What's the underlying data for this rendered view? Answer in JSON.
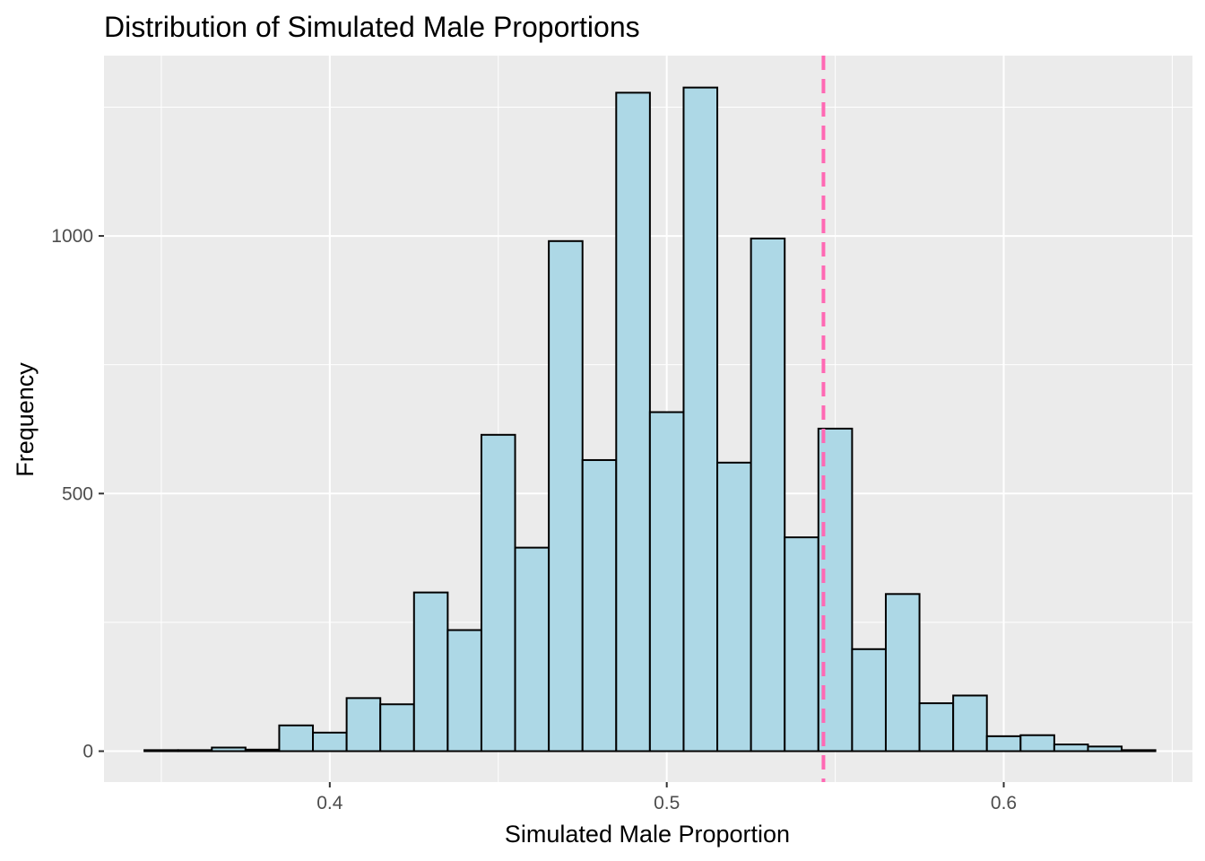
{
  "chart_data": {
    "type": "bar",
    "subtype": "histogram",
    "title": "Distribution of Simulated Male Proportions",
    "xlabel": "Simulated Male Proportion",
    "ylabel": "Frequency",
    "xlim": [
      0.333,
      0.656
    ],
    "ylim": [
      -60,
      1350
    ],
    "x_ticks": [
      0.4,
      0.5,
      0.6
    ],
    "x_tick_labels": [
      "0.4",
      "0.5",
      "0.6"
    ],
    "y_ticks": [
      0,
      500,
      1000
    ],
    "y_tick_labels": [
      "0",
      "500",
      "1000"
    ],
    "bin_width": 0.01,
    "bins": [
      {
        "x0": 0.345,
        "x1": 0.355,
        "count": 2
      },
      {
        "x0": 0.355,
        "x1": 0.365,
        "count": 2
      },
      {
        "x0": 0.365,
        "x1": 0.375,
        "count": 7
      },
      {
        "x0": 0.375,
        "x1": 0.385,
        "count": 3
      },
      {
        "x0": 0.385,
        "x1": 0.395,
        "count": 50
      },
      {
        "x0": 0.395,
        "x1": 0.405,
        "count": 36
      },
      {
        "x0": 0.405,
        "x1": 0.415,
        "count": 103
      },
      {
        "x0": 0.415,
        "x1": 0.425,
        "count": 91
      },
      {
        "x0": 0.425,
        "x1": 0.435,
        "count": 308
      },
      {
        "x0": 0.435,
        "x1": 0.445,
        "count": 235
      },
      {
        "x0": 0.445,
        "x1": 0.455,
        "count": 614
      },
      {
        "x0": 0.455,
        "x1": 0.465,
        "count": 395
      },
      {
        "x0": 0.465,
        "x1": 0.475,
        "count": 990
      },
      {
        "x0": 0.475,
        "x1": 0.485,
        "count": 565
      },
      {
        "x0": 0.485,
        "x1": 0.495,
        "count": 1278
      },
      {
        "x0": 0.495,
        "x1": 0.505,
        "count": 658
      },
      {
        "x0": 0.505,
        "x1": 0.515,
        "count": 1288
      },
      {
        "x0": 0.515,
        "x1": 0.525,
        "count": 560
      },
      {
        "x0": 0.525,
        "x1": 0.535,
        "count": 995
      },
      {
        "x0": 0.535,
        "x1": 0.545,
        "count": 415
      },
      {
        "x0": 0.545,
        "x1": 0.555,
        "count": 626
      },
      {
        "x0": 0.555,
        "x1": 0.565,
        "count": 198
      },
      {
        "x0": 0.565,
        "x1": 0.575,
        "count": 305
      },
      {
        "x0": 0.575,
        "x1": 0.585,
        "count": 93
      },
      {
        "x0": 0.585,
        "x1": 0.595,
        "count": 108
      },
      {
        "x0": 0.595,
        "x1": 0.605,
        "count": 29
      },
      {
        "x0": 0.605,
        "x1": 0.615,
        "count": 31
      },
      {
        "x0": 0.615,
        "x1": 0.625,
        "count": 13
      },
      {
        "x0": 0.625,
        "x1": 0.635,
        "count": 9
      },
      {
        "x0": 0.635,
        "x1": 0.645,
        "count": 2
      }
    ],
    "reference_line": {
      "x": 0.5465,
      "style": "dashed",
      "color": "#ff69b4"
    },
    "bar_fill": "#add8e6",
    "bar_stroke": "#000000",
    "panel_background": "#ebebeb",
    "grid": true,
    "grid_color": "#ffffff",
    "legend": "none"
  }
}
